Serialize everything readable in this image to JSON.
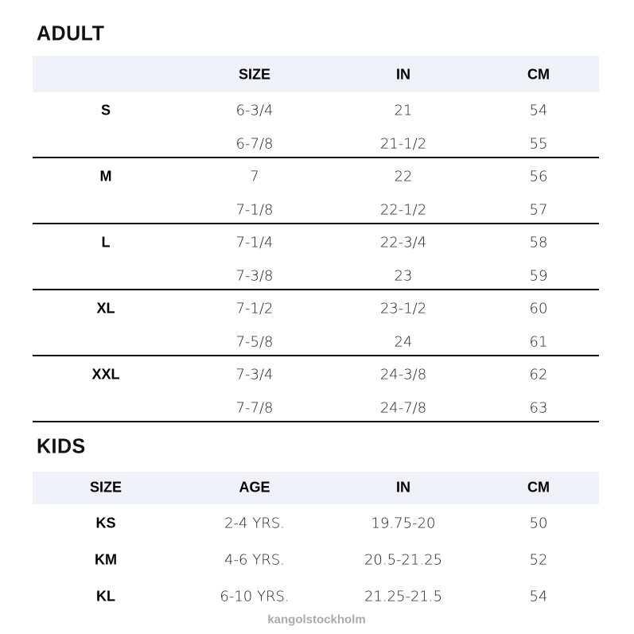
{
  "adult": {
    "title": "ADULT",
    "headers": [
      "",
      "SIZE",
      "IN",
      "CM"
    ],
    "groups": [
      {
        "label": "S",
        "rows": [
          [
            "6-3/4",
            "21",
            "54"
          ],
          [
            "6-7/8",
            "21-1/2",
            "55"
          ]
        ]
      },
      {
        "label": "M",
        "rows": [
          [
            "7",
            "22",
            "56"
          ],
          [
            "7-1/8",
            "22-1/2",
            "57"
          ]
        ]
      },
      {
        "label": "L",
        "rows": [
          [
            "7-1/4",
            "22-3/4",
            "58"
          ],
          [
            "7-3/8",
            "23",
            "59"
          ]
        ]
      },
      {
        "label": "XL",
        "rows": [
          [
            "7-1/2",
            "23-1/2",
            "60"
          ],
          [
            "7-5/8",
            "24",
            "61"
          ]
        ]
      },
      {
        "label": "XXL",
        "rows": [
          [
            "7-3/4",
            "24-3/8",
            "62"
          ],
          [
            "7-7/8",
            "24-7/8",
            "63"
          ]
        ]
      }
    ]
  },
  "kids": {
    "title": "KIDS",
    "headers": [
      "SIZE",
      "AGE",
      "IN",
      "CM"
    ],
    "rows": [
      [
        "KS",
        "2-4 YRS.",
        "19.75-20",
        "50"
      ],
      [
        "KM",
        "4-6 YRS.",
        "20.5-21.25",
        "52"
      ],
      [
        "KL",
        "6-10 YRS.",
        "21.25-21.5",
        "54"
      ]
    ]
  },
  "watermark": "kangolstockholm",
  "colors": {
    "header_band": "#eef2f8",
    "text": "#111111"
  }
}
